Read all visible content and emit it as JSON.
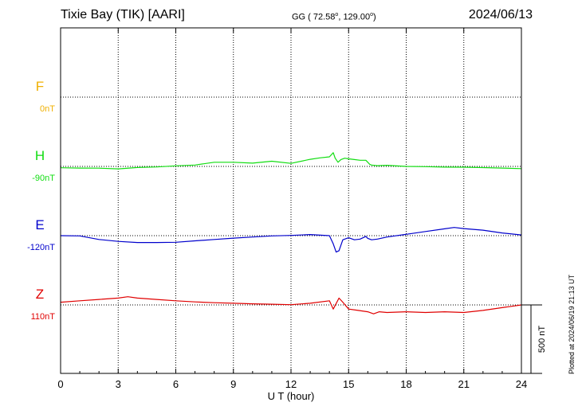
{
  "header": {
    "station": "Tixie Bay (TIK)  [AARI]",
    "coords_prefix": "GG ( 72.58",
    "coords_mid": ", 129.00",
    "coords_suffix": ")",
    "degree_mark": "o",
    "date": "2024/06/13"
  },
  "footer": {
    "plotted": "Plotted at 2024/06/19 21:13 UT"
  },
  "colors": {
    "F": "#f0b000",
    "H": "#11dd11",
    "E": "#0000cc",
    "Z": "#e00000",
    "axis": "#000000",
    "grid": "#000000"
  },
  "chart_data": {
    "type": "line",
    "xlabel": "U T (hour)",
    "xlim": [
      0,
      24
    ],
    "x_ticks": [
      0,
      3,
      6,
      9,
      12,
      15,
      18,
      21,
      24
    ],
    "x_tick_labels": [
      "0",
      "3",
      "6",
      "9",
      "12",
      "15",
      "18",
      "21",
      "24"
    ],
    "scale_bar": {
      "value": 500,
      "label": "500 nT"
    },
    "y_units": "nT",
    "channels": [
      {
        "name": "F",
        "baseline_label": "0nT",
        "color": "#f0b000",
        "x": [],
        "y": []
      },
      {
        "name": "H",
        "baseline_label": "-90nT",
        "color": "#11dd11",
        "x": [
          0,
          1,
          2,
          3,
          4,
          5,
          6,
          7,
          8,
          9,
          10,
          11,
          12,
          13,
          13.5,
          14,
          14.2,
          14.3,
          14.45,
          14.6,
          14.8,
          15,
          15.3,
          15.6,
          15.9,
          16,
          16.1,
          16.2,
          16.5,
          17,
          18,
          19,
          20,
          21,
          22,
          23,
          24
        ],
        "y": [
          -100,
          -102,
          -103,
          -108,
          -98,
          -94,
          -86,
          -80,
          -60,
          -60,
          -66,
          -52,
          -68,
          -38,
          -28,
          -20,
          10,
          -30,
          -60,
          -40,
          -30,
          -35,
          -40,
          -45,
          -45,
          -60,
          -75,
          -80,
          -85,
          -82,
          -90,
          -92,
          -95,
          -96,
          -99,
          -102,
          -106
        ]
      },
      {
        "name": "E",
        "baseline_label": "-120nT",
        "color": "#0000cc",
        "x": [
          0,
          1,
          2,
          3,
          4,
          5,
          6,
          7,
          8,
          9,
          10,
          11,
          12,
          13,
          14,
          14.2,
          14.35,
          14.5,
          14.7,
          15,
          15.3,
          15.6,
          15.9,
          16,
          16.2,
          16.5,
          17,
          18,
          19,
          20,
          20.5,
          21,
          22,
          23,
          24
        ],
        "y": [
          -120,
          -122,
          -148,
          -162,
          -170,
          -170,
          -168,
          -158,
          -148,
          -138,
          -130,
          -122,
          -118,
          -112,
          -120,
          -180,
          -240,
          -230,
          -150,
          -135,
          -150,
          -145,
          -125,
          -140,
          -150,
          -145,
          -130,
          -110,
          -90,
          -70,
          -60,
          -68,
          -80,
          -100,
          -115
        ]
      },
      {
        "name": "Z",
        "baseline_label": "110nT",
        "color": "#e00000",
        "x": [
          0,
          1,
          2,
          3,
          3.5,
          4,
          5,
          6,
          7,
          8,
          9,
          10,
          11,
          12,
          13,
          14,
          14.2,
          14.35,
          14.5,
          14.7,
          15,
          15.5,
          16,
          16.3,
          16.6,
          17,
          18,
          19,
          20,
          21,
          22,
          23,
          24
        ],
        "y": [
          130,
          140,
          150,
          160,
          170,
          160,
          150,
          140,
          132,
          126,
          122,
          118,
          115,
          112,
          122,
          140,
          80,
          120,
          160,
          130,
          80,
          70,
          60,
          45,
          60,
          55,
          60,
          55,
          60,
          55,
          70,
          90,
          110
        ]
      }
    ]
  }
}
